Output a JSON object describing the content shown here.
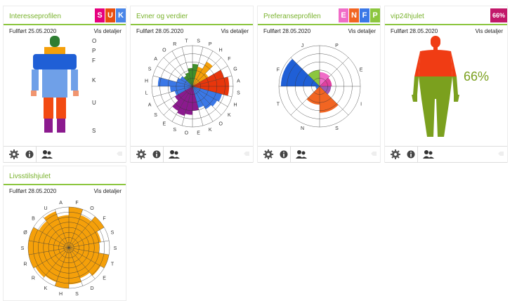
{
  "cards": [
    {
      "title": "Interesseprofilen",
      "badges": [
        {
          "text": "S",
          "color": "#e6007e"
        },
        {
          "text": "U",
          "color": "#e84e0f"
        },
        {
          "text": "K",
          "color": "#4a86e8"
        }
      ],
      "completed": "Fullført 25.05.2020",
      "details": "Vis detaljer",
      "letters": [
        "O",
        "P",
        "F",
        "K",
        "U",
        "S"
      ]
    },
    {
      "title": "Evner og verdier",
      "completed": "Fullført 28.05.2020",
      "details": "Vis detaljer",
      "ring_labels": [
        "S",
        "P",
        "H",
        "F",
        "G",
        "A",
        "S",
        "H",
        "K",
        "O",
        "K",
        "E",
        "O",
        "S",
        "E",
        "S",
        "A",
        "L",
        "H",
        "S",
        "A",
        "O",
        "R",
        "T"
      ]
    },
    {
      "title": "Preferanseprofilen",
      "badges": [
        {
          "text": "E",
          "color": "#f06cc7"
        },
        {
          "text": "N",
          "color": "#f26522"
        },
        {
          "text": "F",
          "color": "#3b78e7"
        },
        {
          "text": "P",
          "color": "#8cc63f"
        }
      ],
      "completed": "Fullført 28.05.2020",
      "details": "Vis detaljer",
      "ring_labels": [
        "P",
        "E",
        "I",
        "S",
        "N",
        "T",
        "F",
        "J"
      ]
    },
    {
      "title": "vip24hjulet",
      "badges": [
        {
          "text": "66%",
          "color": "#c2186a"
        }
      ],
      "completed": "Fullført 28.05.2020",
      "details": "Vis detaljer",
      "percent": "66%"
    },
    {
      "title": "Livsstilshjulet",
      "completed": "Fullført 28.05.2020",
      "details": "Vis detaljer",
      "ring_labels": [
        "F",
        "O",
        "F",
        "S",
        "S",
        "T",
        "E",
        "D",
        "S",
        "H",
        "K",
        "R",
        "R",
        "S",
        "Ø",
        "B",
        "U",
        "A"
      ]
    }
  ],
  "icons": {
    "settings": "gear-icon",
    "info": "info-icon",
    "users": "users-icon"
  },
  "colors": {
    "accent": "#8cc63f",
    "title": "#7ab32e",
    "orange": "#f5a00a"
  }
}
